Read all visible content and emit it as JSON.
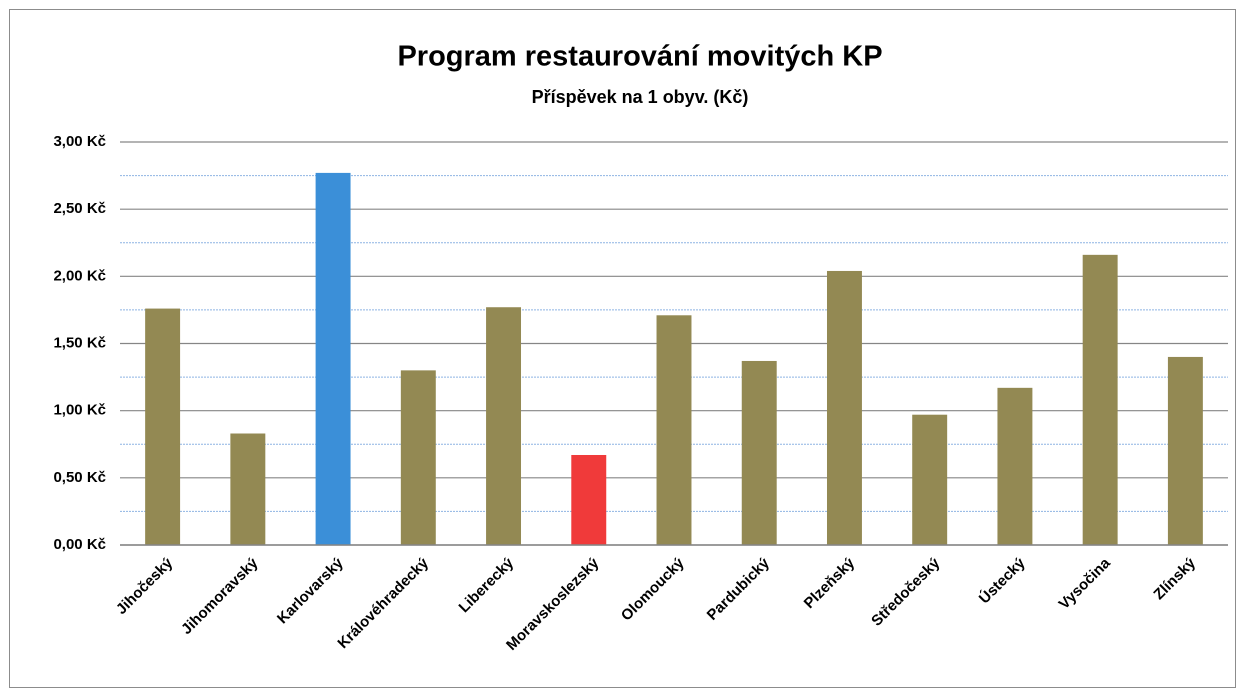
{
  "chart_data": {
    "type": "bar",
    "title": "Program restaurování movitých KP",
    "subtitle": "Příspěvek na 1 obyv. (Kč)",
    "categories": [
      "Jihočeský",
      "Jihomoravský",
      "Karlovarský",
      "Královéhradecký",
      "Liberecký",
      "Moravskoslezský",
      "Olomoucký",
      "Pardubický",
      "Plzeňský",
      "Středočeský",
      "Ústecký",
      "Vysočina",
      "Zlínský"
    ],
    "values": [
      1.76,
      0.83,
      2.77,
      1.3,
      1.77,
      0.67,
      1.71,
      1.37,
      2.04,
      0.97,
      1.17,
      2.16,
      1.4
    ],
    "colors": [
      "#938953",
      "#938953",
      "#3b8fd8",
      "#938953",
      "#938953",
      "#f03a3a",
      "#938953",
      "#938953",
      "#938953",
      "#938953",
      "#938953",
      "#938953",
      "#938953"
    ],
    "ylim": [
      0,
      3
    ],
    "yticks": [
      {
        "value": 0,
        "label": "0,00 Kč"
      },
      {
        "value": 0.5,
        "label": "0,50 Kč"
      },
      {
        "value": 1,
        "label": "1,00 Kč"
      },
      {
        "value": 1.5,
        "label": "1,50 Kč"
      },
      {
        "value": 2,
        "label": "2,00 Kč"
      },
      {
        "value": 2.5,
        "label": "2,50 Kč"
      },
      {
        "value": 3,
        "label": "3,00 Kč"
      }
    ],
    "minor_yticks": [
      0.25,
      0.75,
      1.25,
      1.75,
      2.25,
      2.75
    ],
    "grid": true
  }
}
